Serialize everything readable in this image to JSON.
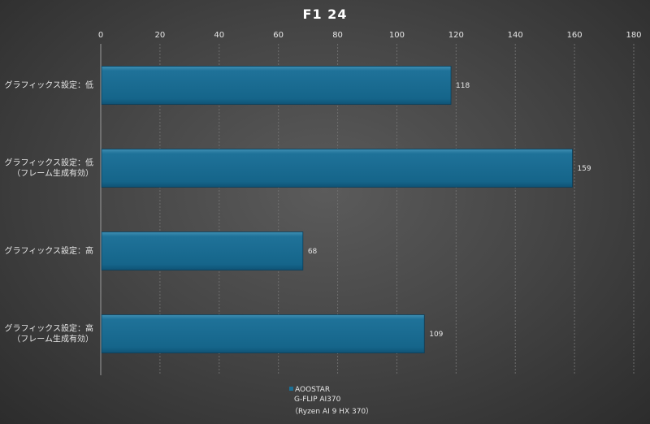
{
  "chart_data": {
    "type": "bar",
    "orientation": "horizontal",
    "title": "F1 24",
    "categories": [
      [
        "グラフィックス設定：低"
      ],
      [
        "グラフィックス設定：低",
        "（フレーム生成有効）"
      ],
      [
        "グラフィックス設定：高"
      ],
      [
        "グラフィックス設定：高",
        "（フレーム生成有効）"
      ]
    ],
    "series": [
      {
        "name": "AOOSTAR G-FLIP AI370（Ryzen AI 9 HX 370）",
        "color": "#1c6f94",
        "values": [
          118,
          159,
          68,
          109
        ]
      }
    ],
    "xlim": [
      0,
      180
    ],
    "xticks": [
      0,
      20,
      40,
      60,
      80,
      100,
      120,
      140,
      160,
      180
    ],
    "xaxis_position": "top",
    "grid": true,
    "legend_position": "bottom",
    "data_labels": true
  },
  "legend": {
    "line1": "AOOSTAR",
    "line2": "G-FLIP  AI370",
    "line3": "（Ryzen AI 9 HX 370）"
  }
}
